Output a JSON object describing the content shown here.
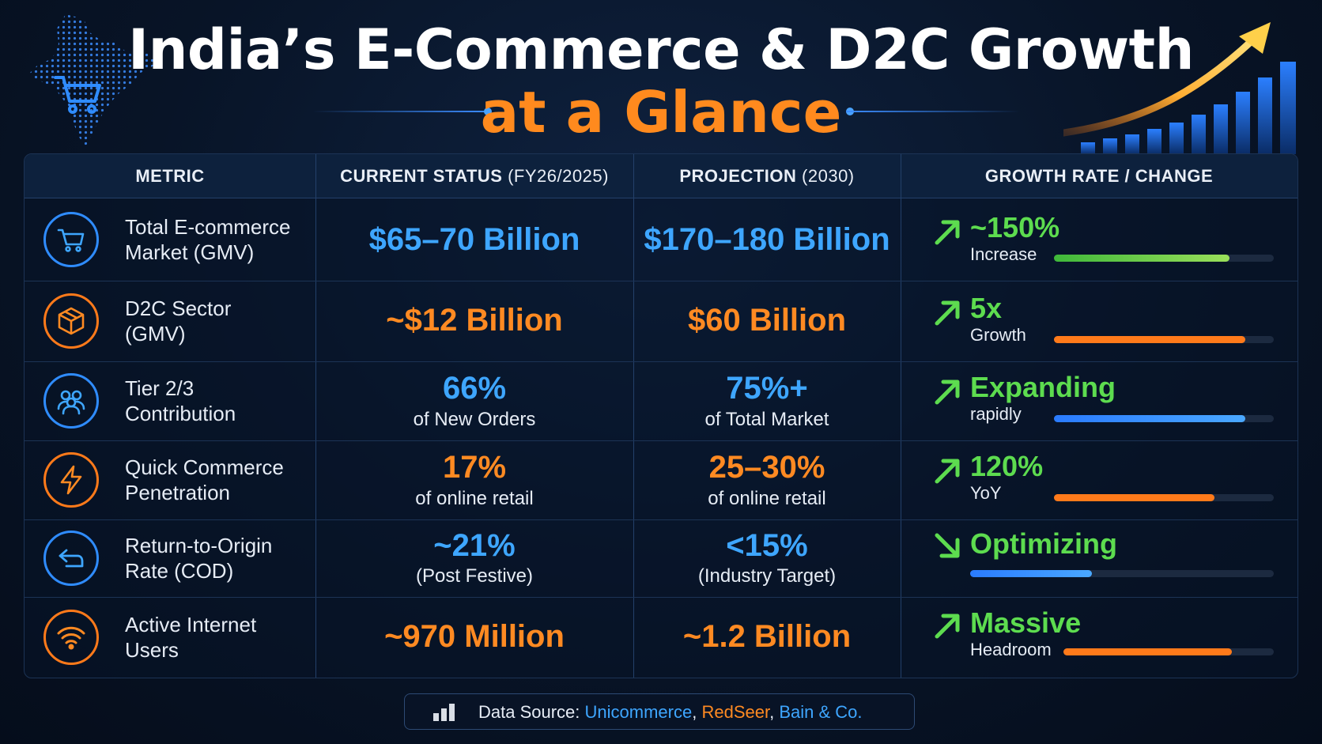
{
  "header": {
    "title_line1": "India’s E-Commerce & D2C Growth",
    "title_line2": "at a Glance"
  },
  "colors": {
    "blue": "#3ea6ff",
    "orange": "#ff8a22",
    "green": "#5ddc4f",
    "background": "#081427"
  },
  "table": {
    "columns": [
      {
        "label": "METRIC",
        "sub": ""
      },
      {
        "label": "CURRENT STATUS",
        "sub": "(FY26/2025)"
      },
      {
        "label": "PROJECTION",
        "sub": "(2030)"
      },
      {
        "label": "GROWTH RATE / CHANGE",
        "sub": ""
      }
    ],
    "rows": [
      {
        "icon": "shopping-cart-icon",
        "accent": "blue",
        "metric": [
          "Total E-commerce",
          "Market (GMV)"
        ],
        "current": "$65–70 Billion",
        "current_sub": "",
        "projection": "$170–180 Billion",
        "projection_sub": "",
        "growth": "~150%",
        "growth_sub": "Increase",
        "direction": "up",
        "bar_level": 0.8,
        "bar_color": "green"
      },
      {
        "icon": "package-box-icon",
        "accent": "orange",
        "metric": [
          "D2C Sector",
          "(GMV)"
        ],
        "current": "~$12 Billion",
        "current_sub": "",
        "projection": "$60 Billion",
        "projection_sub": "",
        "growth": "5x",
        "growth_sub": "Growth",
        "direction": "up",
        "bar_level": 0.87,
        "bar_color": "orange"
      },
      {
        "icon": "users-group-icon",
        "accent": "blue",
        "metric": [
          "Tier 2/3",
          "Contribution"
        ],
        "current": "66%",
        "current_sub": "of New Orders",
        "projection": "75%+",
        "projection_sub": "of Total Market",
        "growth": "Expanding",
        "growth_sub": "rapidly",
        "direction": "up",
        "bar_level": 0.87,
        "bar_color": "blue"
      },
      {
        "icon": "lightning-bolt-icon",
        "accent": "orange",
        "metric": [
          "Quick Commerce",
          "Penetration"
        ],
        "current": "17%",
        "current_sub": "of online retail",
        "projection": "25–30%",
        "projection_sub": "of online retail",
        "growth": "120%",
        "growth_sub": "YoY",
        "direction": "up",
        "bar_level": 0.73,
        "bar_color": "orange"
      },
      {
        "icon": "return-arrow-icon",
        "accent": "blue",
        "metric": [
          "Return-to-Origin",
          "Rate (COD)"
        ],
        "current": "~21%",
        "current_sub": "(Post Festive)",
        "projection": "<15%",
        "projection_sub": "(Industry Target)",
        "growth": "Optimizing",
        "growth_sub": "",
        "direction": "down",
        "bar_level": 0.4,
        "bar_color": "blue"
      },
      {
        "icon": "wifi-icon",
        "accent": "orange",
        "metric": [
          "Active Internet",
          "Users"
        ],
        "current": "~970 Million",
        "current_sub": "",
        "projection": "~1.2 Billion",
        "projection_sub": "",
        "growth": "Massive",
        "growth_sub": "Headroom",
        "direction": "up",
        "bar_level": 0.8,
        "bar_color": "orange"
      }
    ]
  },
  "source": {
    "label": "Data Source:",
    "s1": "Unicommerce",
    "sep1": ",",
    "s2": "RedSeer",
    "sep2": ",",
    "s3": "Bain & Co."
  }
}
